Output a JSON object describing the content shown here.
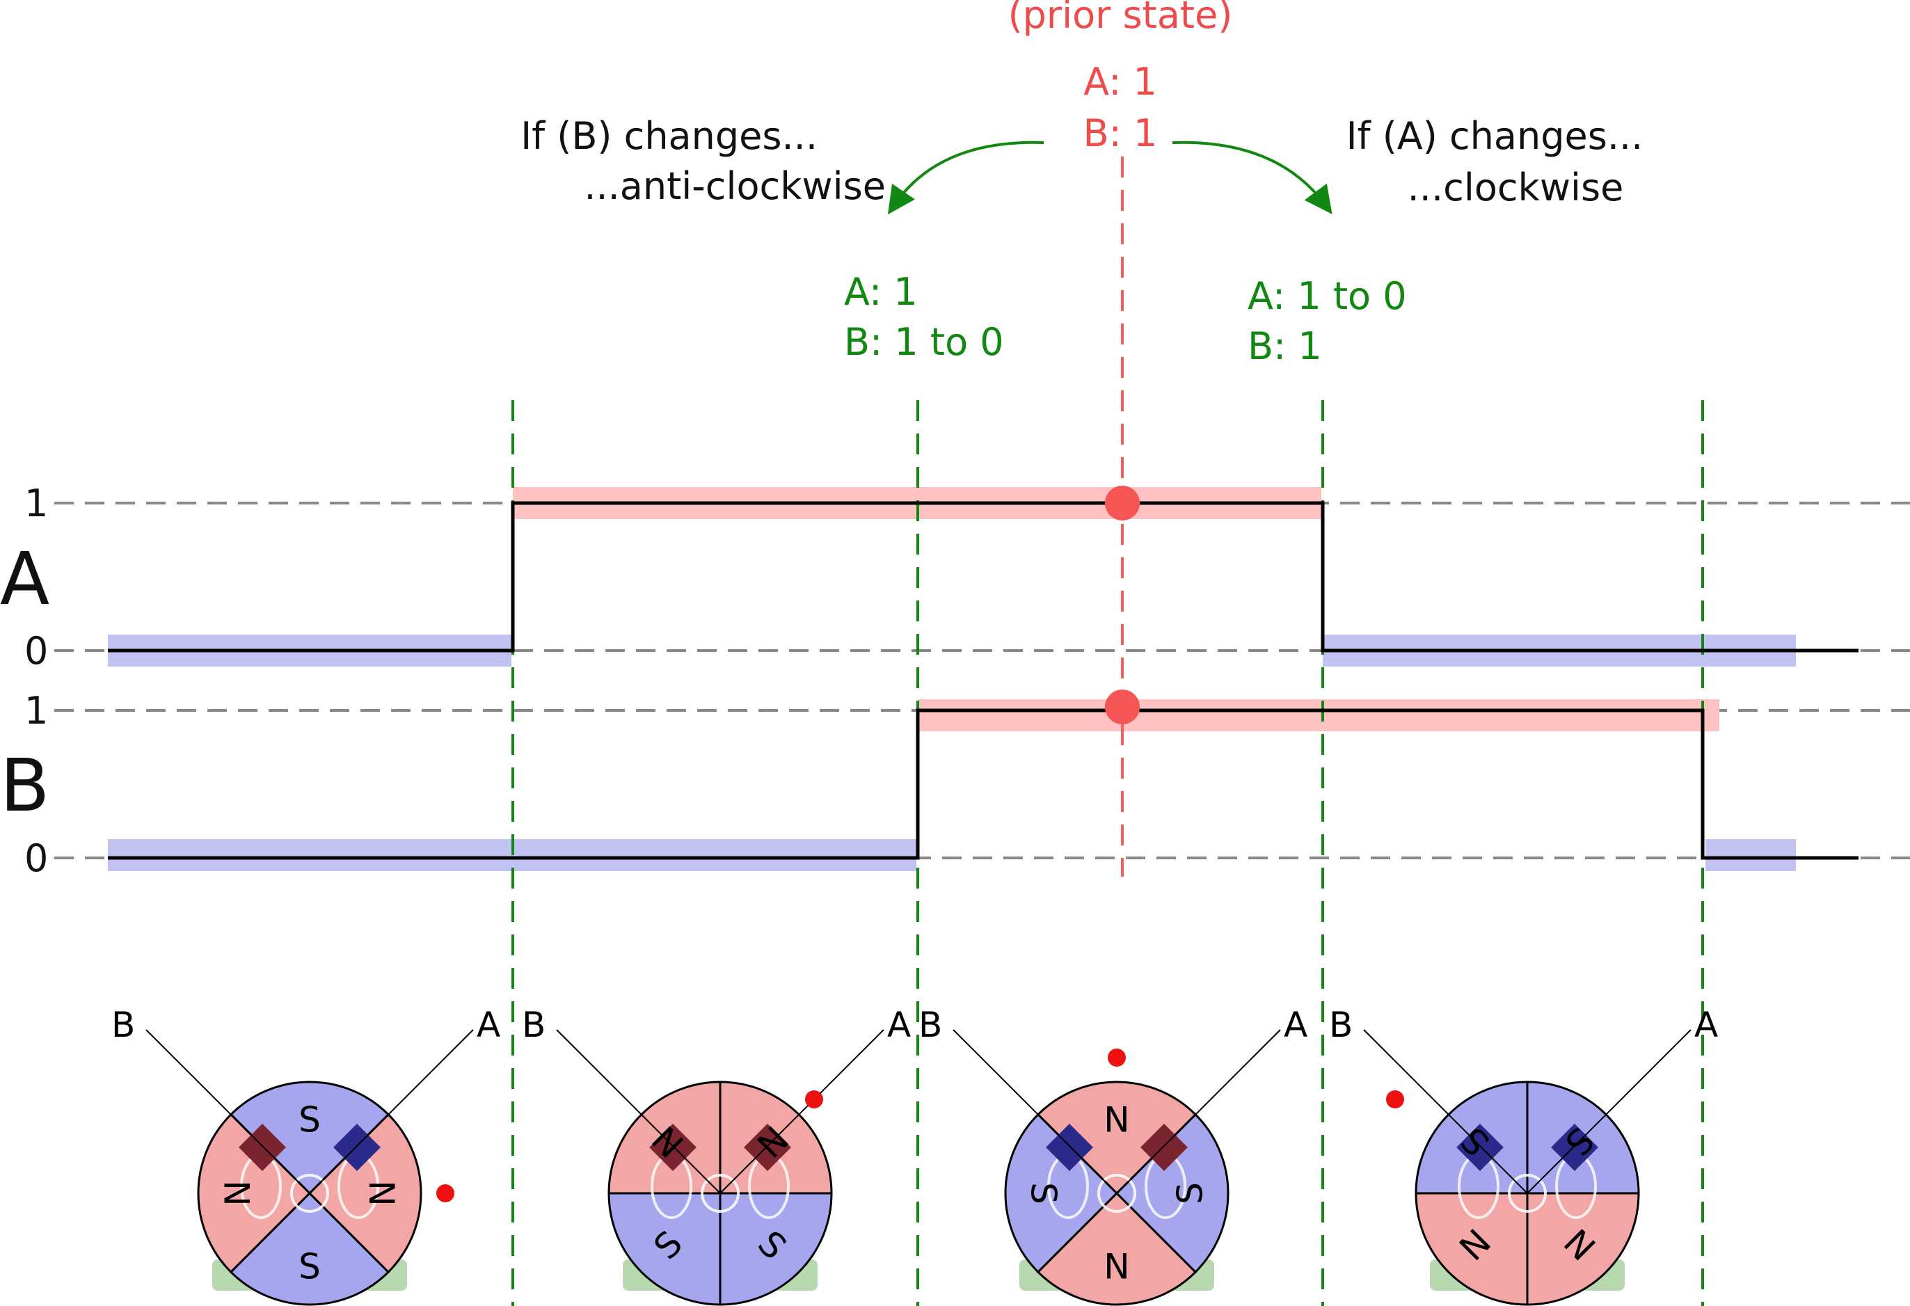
{
  "prior_state": {
    "title": "(prior state)",
    "a": "A: 1",
    "b": "B: 1"
  },
  "anticlockwise": {
    "line1": "If (B) changes...",
    "line2": "...anti-clockwise",
    "a": "A: 1",
    "b": "B: 1 to 0"
  },
  "clockwise": {
    "line1": "If (A) changes...",
    "line2": "...clockwise",
    "a": "A: 1 to 0",
    "b": "B: 1"
  },
  "axes": {
    "channel_a": "A",
    "channel_b": "B",
    "one": "1",
    "zero": "0"
  },
  "sensor_labels": {
    "a": "A",
    "b": "B"
  },
  "colors": {
    "red_text": "#ef4b4b",
    "green": "#118811",
    "red_band": "#ffc2c2",
    "blue_band": "#c2c2f2",
    "dot": "#f55555",
    "magnet_red": "#f3a6a6",
    "magnet_blue": "#a6a6ef"
  },
  "waveforms": {
    "A": [
      0,
      1,
      1,
      0,
      0
    ],
    "B": [
      0,
      0,
      1,
      1,
      0
    ]
  },
  "magnets": [
    {
      "poles": [
        "S",
        "N",
        "S",
        "N"
      ],
      "quadrant_colors": [
        "blue",
        "red",
        "blue",
        "red"
      ],
      "dot": "right"
    },
    {
      "poles": [
        "N",
        "N",
        "S",
        "S"
      ],
      "quadrant_colors": [
        "red",
        "red",
        "blue",
        "blue"
      ],
      "dot": "top-right"
    },
    {
      "poles": [
        "N",
        "S",
        "N",
        "S"
      ],
      "quadrant_colors": [
        "red",
        "blue",
        "red",
        "blue"
      ],
      "dot": "top"
    },
    {
      "poles": [
        "S",
        "S",
        "N",
        "N"
      ],
      "quadrant_colors": [
        "blue",
        "blue",
        "red",
        "red"
      ],
      "dot": "top-left"
    }
  ]
}
